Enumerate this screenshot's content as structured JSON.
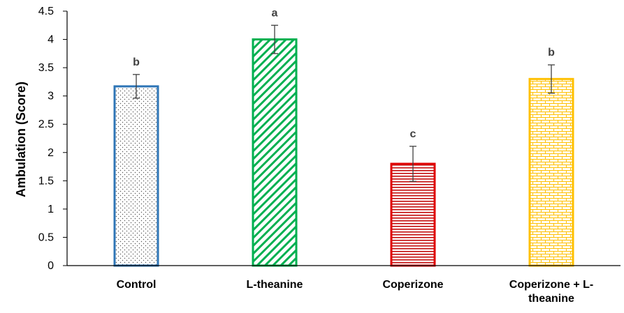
{
  "chart_data": {
    "type": "bar",
    "title": "",
    "xlabel": "",
    "ylabel": "Ambulation (Score)",
    "ylim": [
      0,
      4.5
    ],
    "yticks": [
      "0",
      "0.5",
      "1",
      "1.5",
      "2",
      "2.5",
      "3",
      "3.5",
      "4",
      "4.5"
    ],
    "grid": false,
    "legend": "none",
    "categories": [
      {
        "lines": [
          "Control"
        ]
      },
      {
        "lines": [
          "L-theanine"
        ]
      },
      {
        "lines": [
          "Coperizone"
        ]
      },
      {
        "lines": [
          "Coperizone + L-",
          "theanine"
        ]
      }
    ],
    "values": [
      3.17,
      4.0,
      1.8,
      3.3
    ],
    "errors": [
      0.21,
      0.25,
      0.31,
      0.25
    ],
    "significance": [
      "b",
      "a",
      "c",
      "b"
    ],
    "colors": [
      "#2E75B6",
      "#00B050",
      "#E00000",
      "#FFC000"
    ],
    "patterns": [
      "dots",
      "diagonal",
      "horizontal",
      "brick"
    ]
  }
}
